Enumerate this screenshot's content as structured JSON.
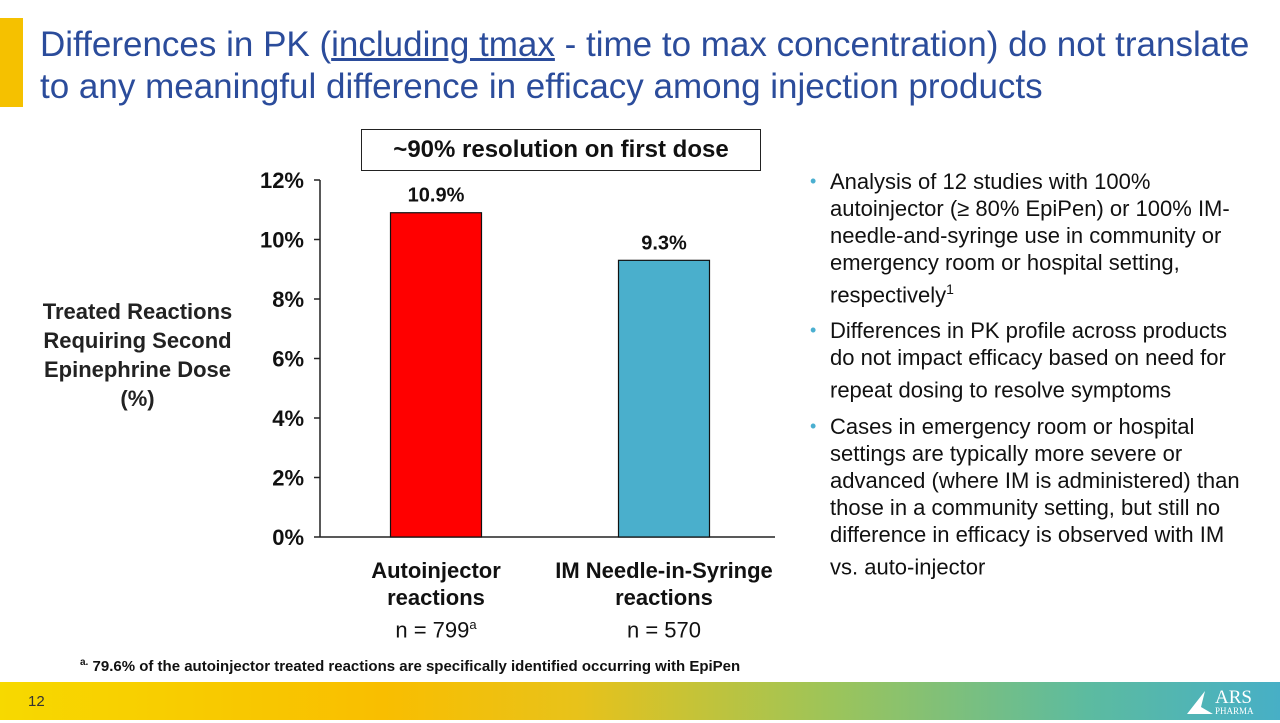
{
  "header": {
    "title_pre": "Differences in PK (",
    "title_underlined": "including tmax",
    "title_post": " - time to max concentration) do not translate to any meaningful difference in efficacy among injection products"
  },
  "callout": "~90% resolution on first dose",
  "chart_data": {
    "type": "bar",
    "categories": [
      "Autoinjector reactions",
      "IM Needle-in-Syringe reactions"
    ],
    "category_lines": [
      [
        "Autoinjector",
        "reactions"
      ],
      [
        "IM Needle-in-Syringe",
        "reactions"
      ]
    ],
    "n_labels": [
      "n = 799",
      "n = 570"
    ],
    "n_superscripts": [
      "a",
      ""
    ],
    "values": [
      10.9,
      9.3
    ],
    "data_labels": [
      "10.9%",
      "9.3%"
    ],
    "colors": [
      "#FF0000",
      "#4AAFCC"
    ],
    "ylabel": "Treated Reactions Requiring Second Epinephrine Dose (%)",
    "ylim": [
      0,
      12
    ],
    "yticks": [
      "0%",
      "2%",
      "4%",
      "6%",
      "8%",
      "10%",
      "12%"
    ],
    "grid": false
  },
  "bullets": [
    {
      "text": "Analysis of 12 studies with 100% autoinjector (≥ 80% EpiPen) or 100% IM-needle-and-syringe use in community or emergency room or hospital setting, respectively",
      "sup": "1"
    },
    {
      "text": "Differences in PK profile across products do not impact efficacy based on need for repeat dosing to resolve symptoms",
      "sup": ""
    },
    {
      "text": "Cases in emergency room or hospital settings are typically more severe or advanced (where IM is administered) than those in a community setting, but still no difference in efficacy is observed with IM vs. auto-injector",
      "sup": ""
    }
  ],
  "footnote": {
    "marker": "a.",
    "text": "79.6% of the autoinjector treated reactions are specifically identified occurring with EpiPen"
  },
  "footer": {
    "page": "12",
    "logo_main": "ARS",
    "logo_sub": "PHARMA"
  }
}
